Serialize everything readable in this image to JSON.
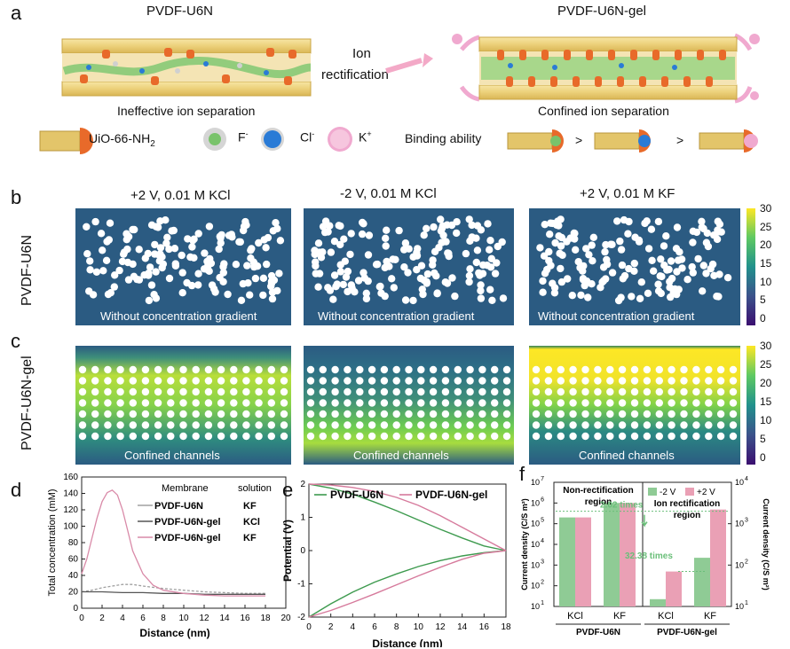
{
  "panel_a": {
    "label": "a",
    "left_title": "PVDF-U6N",
    "right_title": "PVDF-U6N-gel",
    "arrow_label_1": "Ion",
    "arrow_label_2": "rectification",
    "left_caption": "Ineffective ion separation",
    "right_caption": "Confined ion separation",
    "legend": {
      "mof": "UiO-66-NH",
      "mof_sub": "2",
      "f": "F",
      "f_sup": "-",
      "cl": "Cl",
      "cl_sup": "-",
      "k": "K",
      "k_sup": "+",
      "binding": "Binding ability",
      "gt": ">"
    },
    "colors": {
      "channel": "#f1d98a",
      "channel_edge": "#c9a544",
      "mof": "#e86a2a",
      "gel": "#7fcf75",
      "k_ion": "#f0a9cf",
      "cl_ion": "#2a7bd6",
      "f_ion": "#79c36b"
    }
  },
  "panel_b": {
    "label": "b",
    "row_label": "PVDF-U6N",
    "titles": [
      "+2 V, 0.01 M KCl",
      "-2 V, 0.01 M KCl",
      "+2 V, 0.01 M KF"
    ],
    "caption": "Without concentration gradient",
    "colorbar_ticks": [
      "30",
      "25",
      "20",
      "15",
      "10",
      "5",
      "0"
    ]
  },
  "panel_c": {
    "label": "c",
    "row_label": "PVDF-U6N-gel",
    "caption": "Confined channels",
    "colorbar_ticks": [
      "30",
      "25",
      "20",
      "15",
      "10",
      "5",
      "0"
    ]
  },
  "panel_d": {
    "label": "d",
    "chart_data": {
      "type": "line",
      "xlabel": "Distance (nm)",
      "ylabel": "Total concentration (mM)",
      "xlim": [
        0,
        20
      ],
      "ylim": [
        0,
        160
      ],
      "xticks": [
        "0",
        "2",
        "4",
        "6",
        "8",
        "10",
        "12",
        "14",
        "16",
        "18",
        "20"
      ],
      "yticks": [
        "0",
        "20",
        "40",
        "60",
        "80",
        "100",
        "120",
        "140",
        "160"
      ],
      "legend_header": [
        "Membrane",
        "solution"
      ],
      "series": [
        {
          "name": "PVDF-U6N",
          "solution": "KF",
          "color": "#a0a0a0",
          "x": [
            0,
            1,
            2,
            3,
            4,
            5,
            6,
            8,
            10,
            12,
            14,
            16,
            18
          ],
          "y": [
            20,
            22,
            25,
            27,
            29,
            29,
            27,
            24,
            22,
            20,
            19,
            18,
            18
          ]
        },
        {
          "name": "PVDF-U6N-gel",
          "solution": "KCl",
          "color": "#555555",
          "x": [
            0,
            2,
            4,
            6,
            8,
            10,
            12,
            14,
            16,
            18
          ],
          "y": [
            20,
            20,
            19,
            19,
            18,
            18,
            17,
            17,
            17,
            17
          ]
        },
        {
          "name": "PVDF-U6N-gel",
          "solution": "KF",
          "color": "#d98aa8",
          "x": [
            0,
            0.5,
            1,
            1.5,
            2,
            2.5,
            3,
            3.5,
            4,
            4.5,
            5,
            6,
            7,
            8,
            10,
            12,
            14,
            16,
            18
          ],
          "y": [
            42,
            60,
            85,
            110,
            130,
            141,
            144,
            138,
            120,
            95,
            70,
            42,
            28,
            22,
            18,
            16,
            15,
            15,
            15
          ]
        }
      ]
    }
  },
  "panel_e": {
    "label": "e",
    "chart_data": {
      "type": "line",
      "xlabel": "Distance (nm)",
      "ylabel": "Potential (V)",
      "xlim": [
        0,
        18
      ],
      "ylim": [
        -2,
        2
      ],
      "xticks": [
        "0",
        "2",
        "4",
        "6",
        "8",
        "10",
        "12",
        "14",
        "16",
        "18"
      ],
      "yticks": [
        "-2",
        "-1",
        "0",
        "1",
        "2"
      ],
      "series": [
        {
          "name": "PVDF-U6N",
          "color": "#3d9a4e",
          "x": [
            0,
            2,
            4,
            6,
            8,
            10,
            12,
            14,
            16,
            18
          ],
          "y_upper": [
            2.0,
            1.88,
            1.7,
            1.46,
            1.2,
            0.92,
            0.64,
            0.38,
            0.14,
            0
          ],
          "y_lower": [
            -2.0,
            -1.6,
            -1.25,
            -0.95,
            -0.7,
            -0.48,
            -0.3,
            -0.16,
            -0.06,
            0
          ]
        },
        {
          "name": "PVDF-U6N-gel",
          "color": "#d67a9c",
          "x": [
            0,
            2,
            4,
            6,
            8,
            10,
            12,
            14,
            16,
            18
          ],
          "y_upper": [
            2.0,
            1.97,
            1.9,
            1.78,
            1.6,
            1.36,
            1.05,
            0.7,
            0.35,
            0
          ],
          "y_lower": [
            -2.0,
            -1.8,
            -1.56,
            -1.3,
            -1.03,
            -0.76,
            -0.5,
            -0.26,
            -0.08,
            0
          ]
        }
      ]
    }
  },
  "panel_f": {
    "label": "f",
    "chart_data": {
      "type": "bar",
      "ylabel_left": "Current density (C/S m²)",
      "ylabel_right": "Current density (C/S m²)",
      "left_axis": {
        "scale": "log",
        "range": [
          10,
          10000000
        ],
        "ticks": [
          "10",
          "10",
          "10",
          "10",
          "10",
          "10",
          "10"
        ],
        "exponents": [
          "1",
          "2",
          "3",
          "4",
          "5",
          "6",
          "7"
        ]
      },
      "right_axis": {
        "scale": "log",
        "range": [
          10,
          10000
        ],
        "ticks": [
          "10",
          "10",
          "10",
          "10"
        ],
        "exponents": [
          "1",
          "2",
          "3",
          "4"
        ]
      },
      "legend": [
        "-2 V",
        "+2 V"
      ],
      "colors": {
        "neg": "#8fcb95",
        "pos": "#eaa0b5",
        "annot": "#6bbf7a"
      },
      "categories": [
        "KCl",
        "KF",
        "KCl",
        "KF"
      ],
      "groups": [
        "PVDF-U6N",
        "PVDF-U6N-gel"
      ],
      "series": [
        {
          "name": "-2 V",
          "axis": [
            "left",
            "left",
            "right",
            "right"
          ],
          "values": [
            200000,
            1000000,
            15,
            150
          ]
        },
        {
          "name": "+2 V",
          "axis": [
            "left",
            "left",
            "right",
            "right"
          ],
          "values": [
            200000,
            1000000,
            70,
            2200
          ]
        }
      ],
      "annotations": {
        "region_left_1": "Non-rectification",
        "region_left_2": "region",
        "region_right_1": "Ion rectification",
        "region_right_2": "region",
        "ratio_left": "2.02 times",
        "ratio_right": "32.38 times"
      }
    }
  }
}
